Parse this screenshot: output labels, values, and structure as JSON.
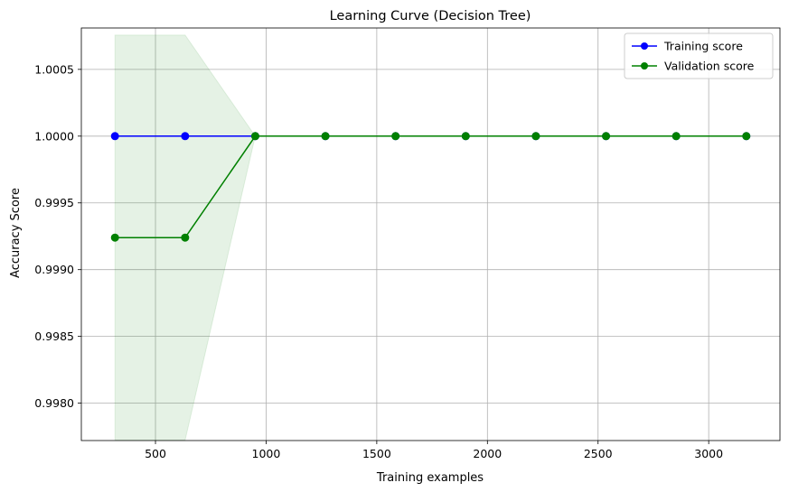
{
  "chart_data": {
    "type": "line",
    "title": "Learning Curve (Decision Tree)",
    "xlabel": "Training examples",
    "ylabel": "Accuracy Score",
    "x": [
      317,
      634,
      951,
      1268,
      1585,
      1902,
      2219,
      2536,
      2853,
      3170
    ],
    "xlim": [
      165,
      3322
    ],
    "ylim": [
      0.99772,
      1.00081
    ],
    "xticks": [
      500,
      1000,
      1500,
      2000,
      2500,
      3000
    ],
    "yticks": [
      0.998,
      0.9985,
      0.999,
      0.9995,
      1.0,
      1.0005
    ],
    "ytick_labels": [
      "0.9980",
      "0.9985",
      "0.9990",
      "0.9995",
      "1.0000",
      "1.0005"
    ],
    "grid": true,
    "legend_position": "top-right",
    "series": [
      {
        "name": "Training score",
        "color": "#0000ff",
        "values": [
          1.0,
          1.0,
          1.0,
          1.0,
          1.0,
          1.0,
          1.0,
          1.0,
          1.0,
          1.0
        ]
      },
      {
        "name": "Validation score",
        "color": "#008000",
        "values": [
          0.99924,
          0.99924,
          1.0,
          1.0,
          1.0,
          1.0,
          1.0,
          1.0,
          1.0,
          1.0
        ],
        "band_upper": [
          1.000757,
          1.000757,
          1.0,
          1.0,
          1.0,
          1.0,
          1.0,
          1.0,
          1.0,
          1.0
        ],
        "band_lower": [
          0.997723,
          0.997723,
          1.0,
          1.0,
          1.0,
          1.0,
          1.0,
          1.0,
          1.0,
          1.0
        ]
      }
    ]
  }
}
